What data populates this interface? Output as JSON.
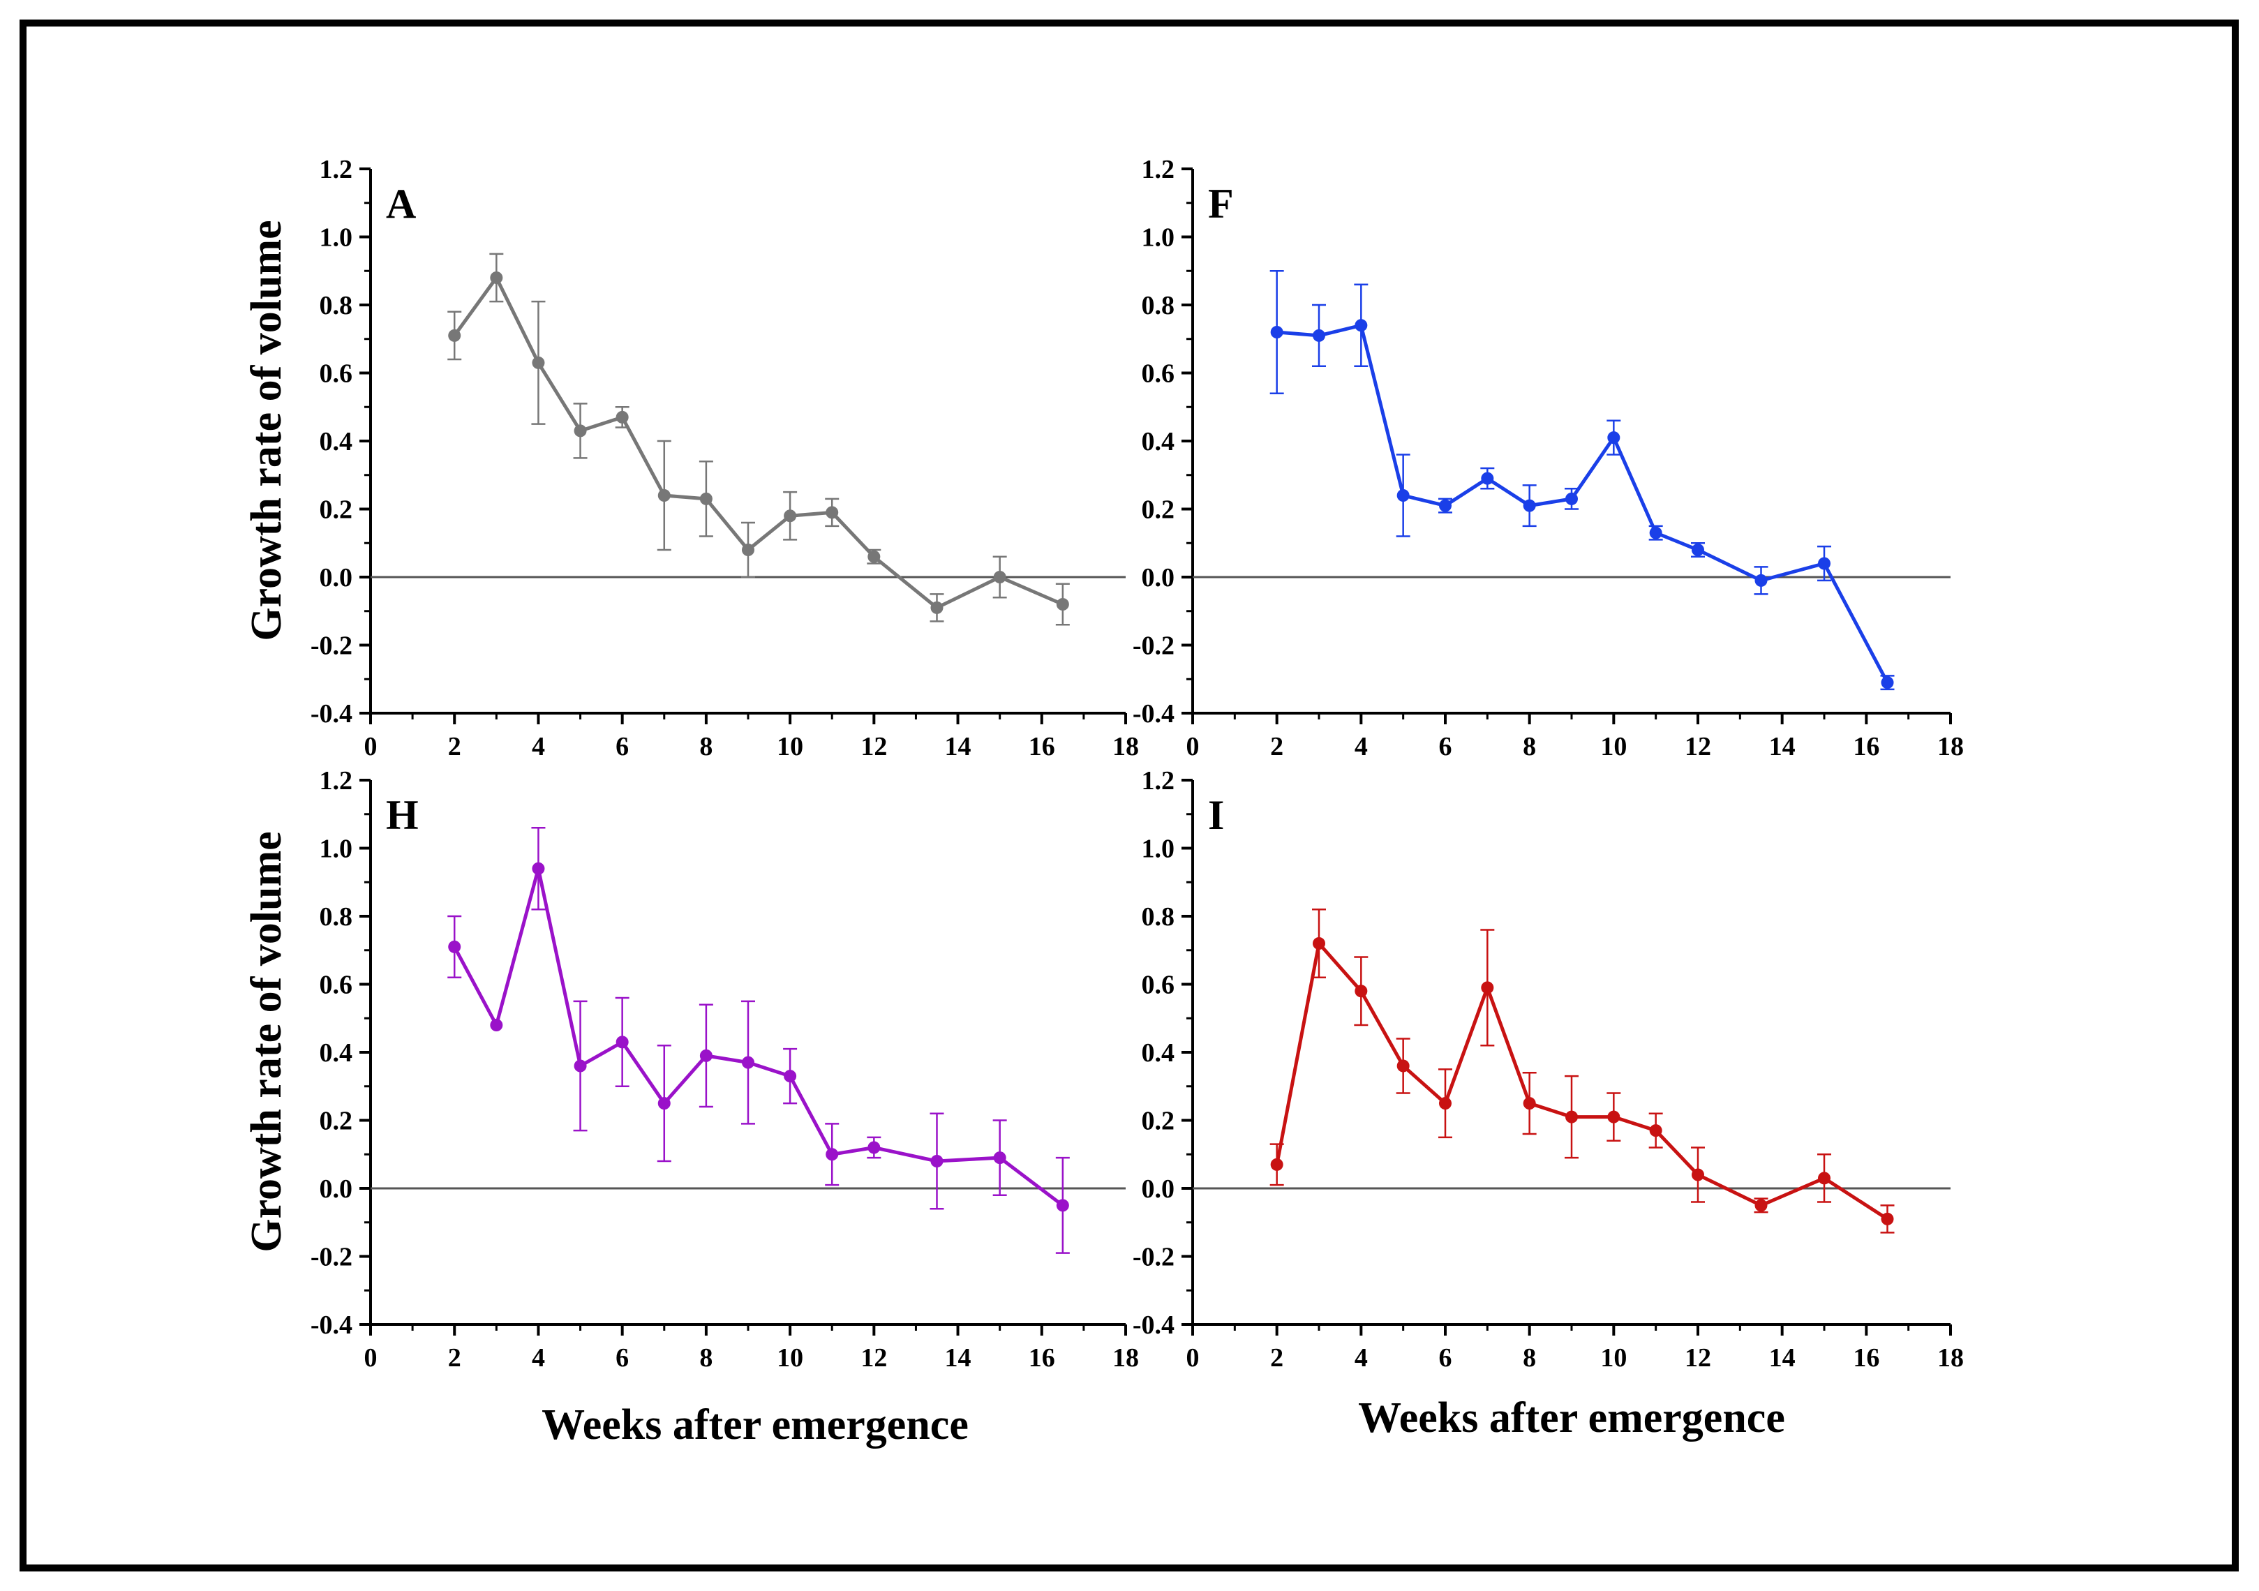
{
  "figure": {
    "ylabel": "Growth rate of volume",
    "xlabel": "Weeks after emergence",
    "zero_line_color": "#555555"
  },
  "chart_data": [
    {
      "type": "line",
      "panel": "A",
      "color": "#777777",
      "xlim": [
        0,
        18
      ],
      "ylim": [
        -0.4,
        1.2
      ],
      "xticks": [
        "0",
        "2",
        "4",
        "6",
        "8",
        "10",
        "12",
        "14",
        "16",
        "18"
      ],
      "yticks": [
        "-0.4",
        "-0.2",
        "0.0",
        "0.2",
        "0.4",
        "0.6",
        "0.8",
        "1.0",
        "1.2"
      ],
      "x": [
        2,
        3,
        4,
        5,
        6,
        7,
        8,
        9,
        10,
        11,
        12,
        13.5,
        15,
        16.5
      ],
      "y": [
        0.71,
        0.88,
        0.63,
        0.43,
        0.47,
        0.24,
        0.23,
        0.08,
        0.18,
        0.19,
        0.06,
        -0.09,
        0.0,
        -0.08
      ],
      "err": [
        0.07,
        0.07,
        0.18,
        0.08,
        0.03,
        0.16,
        0.11,
        0.08,
        0.07,
        0.04,
        0.02,
        0.04,
        0.06,
        0.06
      ]
    },
    {
      "type": "line",
      "panel": "F",
      "color": "#1a3fe8",
      "xlim": [
        0,
        18
      ],
      "ylim": [
        -0.4,
        1.2
      ],
      "xticks": [
        "0",
        "2",
        "4",
        "6",
        "8",
        "10",
        "12",
        "14",
        "16",
        "18"
      ],
      "yticks": [
        "-0.4",
        "-0.2",
        "0.0",
        "0.2",
        "0.4",
        "0.6",
        "0.8",
        "1.0",
        "1.2"
      ],
      "x": [
        2,
        3,
        4,
        5,
        6,
        7,
        8,
        9,
        10,
        11,
        12,
        13.5,
        15,
        16.5
      ],
      "y": [
        0.72,
        0.71,
        0.74,
        0.24,
        0.21,
        0.29,
        0.21,
        0.23,
        0.41,
        0.13,
        0.08,
        -0.01,
        0.04,
        -0.31
      ],
      "err": [
        0.18,
        0.09,
        0.12,
        0.12,
        0.02,
        0.03,
        0.06,
        0.03,
        0.05,
        0.02,
        0.02,
        0.04,
        0.05,
        0.02
      ]
    },
    {
      "type": "line",
      "panel": "H",
      "color": "#9a12c9",
      "xlim": [
        0,
        18
      ],
      "ylim": [
        -0.4,
        1.2
      ],
      "xticks": [
        "0",
        "2",
        "4",
        "6",
        "8",
        "10",
        "12",
        "14",
        "16",
        "18"
      ],
      "yticks": [
        "-0.4",
        "-0.2",
        "0.0",
        "0.2",
        "0.4",
        "0.6",
        "0.8",
        "1.0",
        "1.2"
      ],
      "x": [
        2,
        3,
        4,
        5,
        6,
        7,
        8,
        9,
        10,
        11,
        12,
        13.5,
        15,
        16.5
      ],
      "y": [
        0.71,
        0.48,
        0.94,
        0.36,
        0.43,
        0.25,
        0.39,
        0.37,
        0.33,
        0.1,
        0.12,
        0.08,
        0.09,
        -0.05
      ],
      "err": [
        0.09,
        0.0,
        0.12,
        0.19,
        0.13,
        0.17,
        0.15,
        0.18,
        0.08,
        0.09,
        0.03,
        0.14,
        0.11,
        0.14
      ]
    },
    {
      "type": "line",
      "panel": "I",
      "color": "#c81212",
      "xlim": [
        0,
        18
      ],
      "ylim": [
        -0.4,
        1.2
      ],
      "xticks": [
        "0",
        "2",
        "4",
        "6",
        "8",
        "10",
        "12",
        "14",
        "16",
        "18"
      ],
      "yticks": [
        "-0.4",
        "-0.2",
        "0.0",
        "0.2",
        "0.4",
        "0.6",
        "0.8",
        "1.0",
        "1.2"
      ],
      "x": [
        2,
        3,
        4,
        5,
        6,
        7,
        8,
        9,
        10,
        11,
        12,
        13.5,
        15,
        16.5
      ],
      "y": [
        0.07,
        0.72,
        0.58,
        0.36,
        0.25,
        0.59,
        0.25,
        0.21,
        0.21,
        0.17,
        0.04,
        -0.05,
        0.03,
        -0.09
      ],
      "err": [
        0.06,
        0.1,
        0.1,
        0.08,
        0.1,
        0.17,
        0.09,
        0.12,
        0.07,
        0.05,
        0.08,
        0.02,
        0.07,
        0.04
      ]
    }
  ]
}
